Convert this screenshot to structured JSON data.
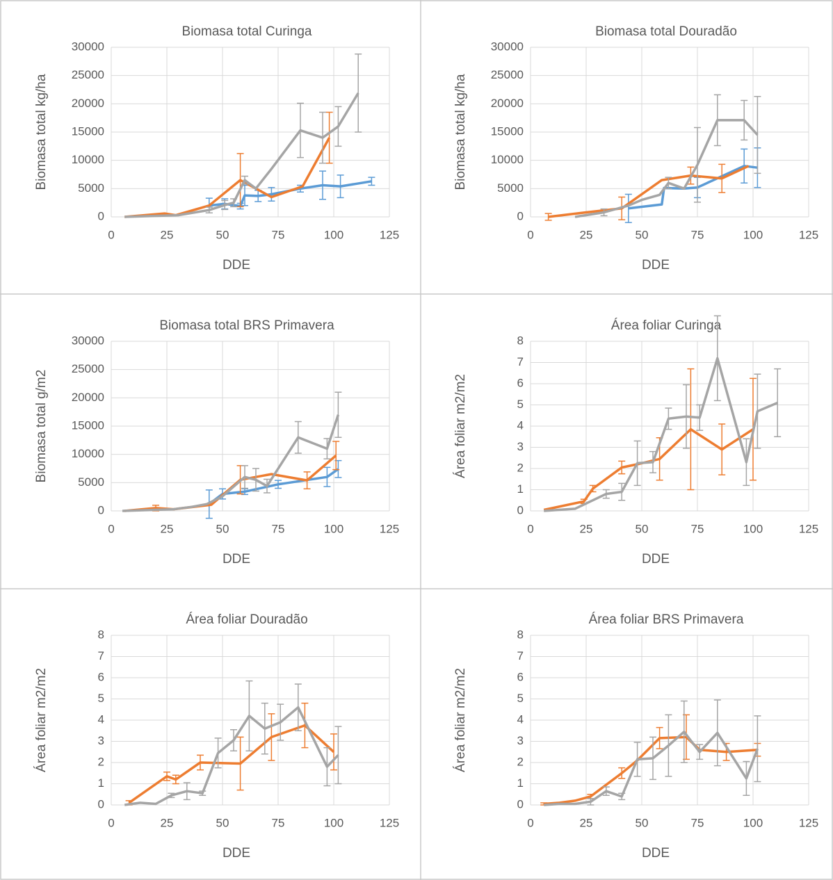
{
  "chart_data": [
    {
      "type": "line",
      "title": "Biomasa total Curinga",
      "xlabel": "DDE",
      "ylabel": "Biomasa total kg/ha",
      "xlim": [
        0,
        125
      ],
      "xticks": [
        0,
        25,
        50,
        75,
        100,
        125
      ],
      "ylim": [
        0,
        30000
      ],
      "yticks": [
        0,
        5000,
        10000,
        15000,
        20000,
        25000,
        30000
      ],
      "grid": true,
      "series": [
        {
          "color": "#5b9bd5",
          "x": [
            44,
            51,
            58,
            60,
            66,
            72,
            85,
            95,
            103,
            117
          ],
          "values": [
            2000,
            2300,
            1900,
            3800,
            3700,
            4000,
            5000,
            5600,
            5400,
            6300
          ],
          "errors": [
            1300,
            900,
            500,
            1800,
            1000,
            1200,
            600,
            2500,
            2000,
            700
          ]
        },
        {
          "color": "#ed7d31",
          "x": [
            6,
            24,
            29,
            44,
            58,
            72,
            86,
            98
          ],
          "values": [
            0,
            600,
            300,
            2000,
            6500,
            3500,
            5400,
            14000
          ],
          "errors": [
            null,
            null,
            null,
            null,
            4700,
            null,
            null,
            4500
          ]
        },
        {
          "color": "#a5a5a5",
          "x": [
            6,
            30,
            44,
            51,
            55,
            60,
            65,
            72,
            85,
            95,
            102,
            111
          ],
          "values": [
            0,
            300,
            1200,
            2100,
            2500,
            6500,
            5000,
            8500,
            15300,
            14000,
            16000,
            21900
          ],
          "errors": [
            null,
            null,
            500,
            800,
            700,
            700,
            null,
            null,
            4800,
            4500,
            3500,
            6900
          ]
        }
      ]
    },
    {
      "type": "line",
      "title": "Biomasa total Douradão",
      "xlabel": "DDE",
      "ylabel": "Biomasa total kg/ha",
      "xlim": [
        0,
        125
      ],
      "xticks": [
        0,
        25,
        50,
        75,
        100,
        125
      ],
      "ylim": [
        0,
        30000
      ],
      "yticks": [
        0,
        5000,
        10000,
        15000,
        20000,
        25000,
        30000
      ],
      "grid": true,
      "series": [
        {
          "color": "#5b9bd5",
          "x": [
            44,
            59,
            60,
            69,
            75,
            96,
            102
          ],
          "values": [
            1500,
            2200,
            5100,
            5000,
            5200,
            9000,
            8700
          ],
          "errors": [
            2500,
            null,
            null,
            null,
            1800,
            3000,
            3500
          ]
        },
        {
          "color": "#ed7d31",
          "x": [
            8,
            25,
            41,
            59,
            72,
            86,
            98
          ],
          "values": [
            0,
            800,
            1500,
            6500,
            7300,
            6800,
            9000
          ],
          "errors": [
            600,
            null,
            2000,
            null,
            1500,
            2500,
            null
          ]
        },
        {
          "color": "#a5a5a5",
          "x": [
            20,
            33,
            44,
            50,
            58,
            62,
            69,
            75,
            84,
            96,
            102
          ],
          "values": [
            0,
            800,
            2000,
            3000,
            3900,
            6000,
            5000,
            9200,
            17100,
            17100,
            14500
          ],
          "errors": [
            null,
            600,
            null,
            null,
            null,
            1000,
            null,
            6600,
            4500,
            3500,
            6800
          ]
        }
      ]
    },
    {
      "type": "line",
      "title": "Biomasa total BRS Primavera",
      "xlabel": "DDE",
      "ylabel": "Biomasa total g/m2",
      "xlim": [
        0,
        125
      ],
      "xticks": [
        0,
        25,
        50,
        75,
        100,
        125
      ],
      "ylim": [
        0,
        30000
      ],
      "yticks": [
        0,
        5000,
        10000,
        15000,
        20000,
        25000,
        30000
      ],
      "grid": true,
      "series": [
        {
          "color": "#5b9bd5",
          "x": [
            44,
            50,
            60,
            75,
            97,
            102
          ],
          "values": [
            1200,
            3000,
            3400,
            4700,
            6000,
            7400
          ],
          "errors": [
            2500,
            900,
            500,
            700,
            1700,
            1500
          ]
        },
        {
          "color": "#ed7d31",
          "x": [
            6,
            20,
            28,
            45,
            58,
            72,
            88,
            101
          ],
          "values": [
            0,
            500,
            300,
            1100,
            5500,
            6500,
            5400,
            9800
          ],
          "errors": [
            null,
            500,
            null,
            null,
            2500,
            null,
            1500,
            2500
          ]
        },
        {
          "color": "#a5a5a5",
          "x": [
            5,
            28,
            36,
            43,
            50,
            60,
            65,
            70,
            84,
            97,
            102
          ],
          "values": [
            0,
            300,
            700,
            1200,
            2600,
            6000,
            5500,
            4400,
            13000,
            11000,
            17000
          ],
          "errors": [
            null,
            null,
            null,
            null,
            null,
            2000,
            2000,
            1200,
            2800,
            1800,
            4000
          ]
        }
      ]
    },
    {
      "type": "line",
      "title": "Área foliar Curinga",
      "xlabel": "DDE",
      "ylabel": "Área foliar m2/m2",
      "xlim": [
        0,
        125
      ],
      "xticks": [
        0,
        25,
        50,
        75,
        100,
        125
      ],
      "ylim": [
        0,
        8
      ],
      "yticks": [
        0,
        1,
        2,
        3,
        4,
        5,
        6,
        7,
        8
      ],
      "grid": true,
      "series": [
        {
          "color": "#ed7d31",
          "x": [
            6,
            24,
            28,
            41,
            48,
            58,
            72,
            86,
            100
          ],
          "values": [
            0.05,
            0.45,
            1.05,
            2.05,
            2.2,
            2.45,
            3.85,
            2.9,
            3.85
          ],
          "errors": [
            null,
            0.1,
            0.15,
            0.3,
            null,
            1,
            2.85,
            1.2,
            2.4
          ]
        },
        {
          "color": "#a5a5a5",
          "x": [
            6,
            20,
            34,
            41,
            48,
            55,
            62,
            70,
            76,
            84,
            97,
            102,
            111
          ],
          "values": [
            0,
            0.1,
            0.8,
            0.9,
            2.25,
            2.3,
            4.35,
            4.45,
            4.4,
            7.2,
            2.3,
            4.7,
            5.1
          ],
          "errors": [
            null,
            null,
            0.2,
            0.4,
            1.05,
            0.5,
            0.5,
            1.5,
            0.6,
            2,
            1.1,
            1.75,
            1.6
          ]
        }
      ]
    },
    {
      "type": "line",
      "title": "Área foliar Douradão",
      "xlabel": "DDE",
      "ylabel": "Área foliar m2/m2",
      "xlim": [
        0,
        125
      ],
      "xticks": [
        0,
        25,
        50,
        75,
        100,
        125
      ],
      "ylim": [
        0,
        8
      ],
      "yticks": [
        0,
        1,
        2,
        3,
        4,
        5,
        6,
        7,
        8
      ],
      "grid": true,
      "series": [
        {
          "color": "#ed7d31",
          "x": [
            8,
            25,
            29,
            40,
            58,
            72,
            87,
            100
          ],
          "values": [
            0.1,
            1.35,
            1.2,
            2,
            1.95,
            3.2,
            3.75,
            2.5
          ],
          "errors": [
            0.1,
            0.2,
            0.2,
            0.35,
            1.25,
            1.1,
            1.05,
            0.85
          ]
        },
        {
          "color": "#a5a5a5",
          "x": [
            6,
            13,
            20,
            27,
            34,
            41,
            48,
            55,
            62,
            69,
            76,
            84,
            97,
            102
          ],
          "values": [
            0,
            0.1,
            0.05,
            0.45,
            0.65,
            0.55,
            2.45,
            3.05,
            4.2,
            3.6,
            3.9,
            4.6,
            1.8,
            2.35
          ],
          "errors": [
            null,
            null,
            null,
            0.1,
            0.4,
            0.1,
            0.7,
            0.5,
            1.65,
            1.2,
            0.85,
            1.1,
            0.9,
            1.35
          ]
        }
      ]
    },
    {
      "type": "line",
      "title": "Área foliar BRS Primavera",
      "xlabel": "DDE",
      "ylabel": "Área foliar m2/m2",
      "xlim": [
        0,
        125
      ],
      "xticks": [
        0,
        25,
        50,
        75,
        100,
        125
      ],
      "ylim": [
        0,
        8
      ],
      "yticks": [
        0,
        1,
        2,
        3,
        4,
        5,
        6,
        7,
        8
      ],
      "grid": true,
      "series": [
        {
          "color": "#ed7d31",
          "x": [
            6,
            13,
            20,
            27,
            41,
            48,
            58,
            70,
            76,
            88,
            102
          ],
          "values": [
            0.05,
            0.1,
            0.2,
            0.4,
            1.5,
            2.1,
            3.15,
            3.2,
            2.6,
            2.5,
            2.6
          ],
          "errors": [
            0.05,
            null,
            null,
            0.1,
            0.25,
            null,
            0.5,
            1.05,
            null,
            0.4,
            0.3
          ]
        },
        {
          "color": "#a5a5a5",
          "x": [
            6,
            13,
            20,
            27,
            34,
            41,
            48,
            55,
            62,
            69,
            76,
            84,
            97,
            102
          ],
          "values": [
            0,
            0.05,
            0.05,
            0.15,
            0.65,
            0.4,
            2.15,
            2.2,
            2.8,
            3.45,
            2.5,
            3.4,
            1.25,
            2.65
          ],
          "errors": [
            null,
            null,
            null,
            0.15,
            0.2,
            0.15,
            0.8,
            1,
            1.45,
            1.45,
            0.35,
            1.55,
            0.8,
            1.55
          ]
        }
      ]
    }
  ]
}
